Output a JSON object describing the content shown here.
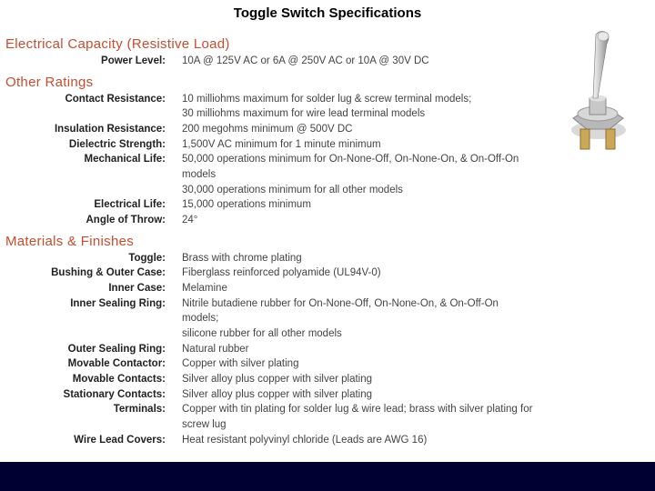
{
  "title": "Toggle Switch Specifications",
  "sections": [
    {
      "header": "Electrical Capacity (Resistive Load)",
      "rows": [
        {
          "label": "Power Level:",
          "value": "10A @ 125V AC or 6A @ 250V AC or 10A @ 30V DC"
        }
      ]
    },
    {
      "header": "Other Ratings",
      "rows": [
        {
          "label": "Contact Resistance:",
          "value": "10 milliohms maximum for solder lug & screw terminal models;\n30 milliohms maximum for wire lead terminal models"
        },
        {
          "label": "Insulation Resistance:",
          "value": "200 megohms minimum @ 500V DC"
        },
        {
          "label": "Dielectric Strength:",
          "value": "1,500V AC minimum for 1 minute minimum"
        },
        {
          "label": "Mechanical Life:",
          "value": "50,000 operations minimum for On-None-Off, On-None-On, & On-Off-On models\n30,000 operations minimum for all other models"
        },
        {
          "label": "Electrical Life:",
          "value": "15,000 operations minimum"
        },
        {
          "label": "Angle of Throw:",
          "value": "24°"
        }
      ]
    },
    {
      "header": "Materials & Finishes",
      "rows": [
        {
          "label": "Toggle:",
          "value": "Brass with chrome plating"
        },
        {
          "label": "Bushing & Outer Case:",
          "value": "Fiberglass reinforced polyamide (UL94V-0)"
        },
        {
          "label": "Inner Case:",
          "value": "Melamine"
        },
        {
          "label": "Inner Sealing Ring:",
          "value": "Nitrile butadiene rubber for On-None-Off, On-None-On, & On-Off-On models;\nsilicone rubber for all other models"
        },
        {
          "label": "Outer Sealing Ring:",
          "value": "Natural rubber"
        },
        {
          "label": "Movable Contactor:",
          "value": "Copper with silver plating"
        },
        {
          "label": "Movable Contacts:",
          "value": "Silver alloy plus copper with silver plating"
        },
        {
          "label": "Stationary Contacts:",
          "value": "Silver alloy plus copper with silver plating"
        },
        {
          "label": "Terminals:",
          "value": "Copper with tin plating for solder lug & wire lead; brass with silver plating for screw lug"
        },
        {
          "label": "Wire Lead Covers:",
          "value": "Heat resistant polyvinyl chloride (Leads are AWG 16)"
        }
      ]
    }
  ],
  "colors": {
    "page_bg": "#000033",
    "content_bg": "#ffffff",
    "header_color": "#c94c2e",
    "text_color": "#333333"
  }
}
